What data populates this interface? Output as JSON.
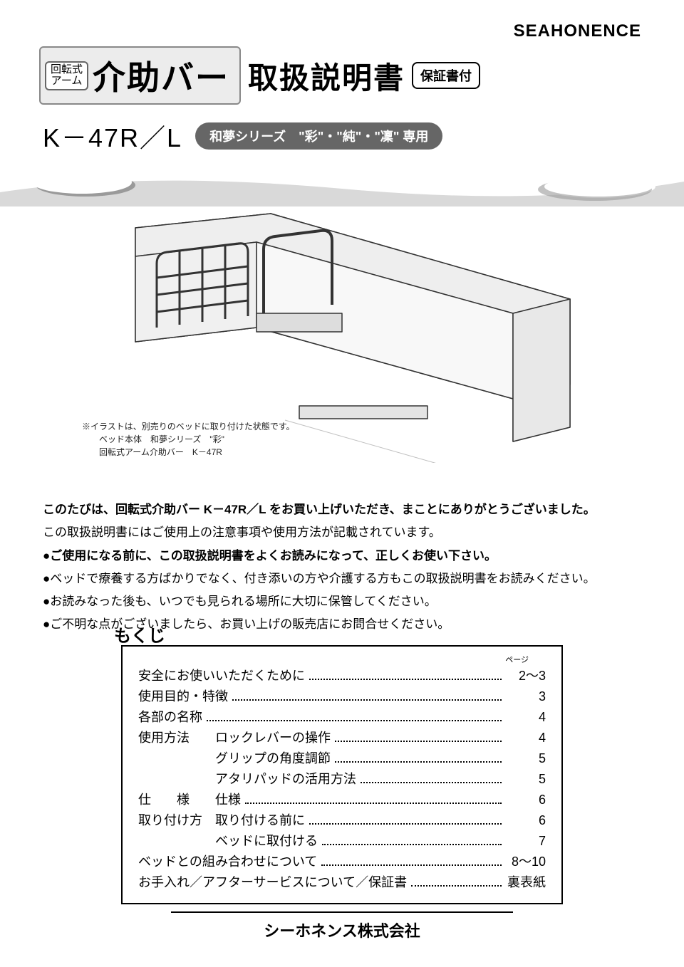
{
  "brand": "SEAHONENCE",
  "product": {
    "prefix_line1": "回転式",
    "prefix_line2": "アーム",
    "name": "介助バー"
  },
  "doc_title": "取扱説明書",
  "warranty_badge": "保証書付",
  "model": "K－47R／L",
  "series_pill": "和夢シリーズ　\"彩\"・\"純\"・\"凜\" 専用",
  "colors": {
    "wave_bg": "#d9d9d9",
    "wave_dark": "#9a9a9a",
    "wave_white": "#ffffff",
    "line_gray": "#888888",
    "pill_bg": "#666666"
  },
  "illustration_caption": {
    "l1": "※イラストは、別売りのベッドに取り付けた状態です。",
    "l2": "ベッド本体　和夢シリーズ　\"彩\"",
    "l3": "回転式アーム介助バー　K－47R"
  },
  "intro": {
    "thanks": "このたびは、回転式介助バー K－47R／L をお買い上げいただき、まことにありがとうございました。",
    "desc": "この取扱説明書にはご使用上の注意事項や使用方法が記載されています。",
    "b1": "●ご使用になる前に、この取扱説明書をよくお読みになって、正しくお使い下さい。",
    "b2": "●ベッドで療養する方ばかりでなく、付き添いの方や介護する方もこの取扱説明書をお読みください。",
    "b3": "●お読みなった後も、いつでも見られる場所に大切に保管してください。",
    "b4": "●ご不明な点がございましたら、お買い上げの販売店にお問合せください。"
  },
  "toc": {
    "title": "もくじ",
    "page_header": "ページ",
    "rows": [
      {
        "label": "安全にお使いいただくために",
        "sub": "",
        "page": "2～3",
        "indent": false
      },
      {
        "label": "使用目的・特徴",
        "sub": "",
        "page": "3",
        "indent": false
      },
      {
        "label": "各部の名称",
        "sub": "",
        "page": "4",
        "indent": false
      },
      {
        "label": "使用方法",
        "sub": "ロックレバーの操作",
        "page": "4",
        "indent": false,
        "label_spaced": false,
        "label_pad": true
      },
      {
        "label": "",
        "sub": "グリップの角度調節",
        "page": "5",
        "indent": true
      },
      {
        "label": "",
        "sub": "アタリパッドの活用方法",
        "page": "5",
        "indent": true
      },
      {
        "label": "仕　　様",
        "sub": "仕様",
        "page": "6",
        "indent": false,
        "label_pad": true
      },
      {
        "label": "取り付け方",
        "sub": "取り付ける前に",
        "page": "6",
        "indent": false,
        "label_pad": true
      },
      {
        "label": "",
        "sub": "ベッドに取付ける",
        "page": "7",
        "indent": true
      },
      {
        "label": "ベッドとの組み合わせについて",
        "sub": "",
        "page": "8～10",
        "indent": false
      },
      {
        "label": "お手入れ／アフターサービスについて／保証書",
        "sub": "",
        "page": "裏表紙",
        "indent": false
      }
    ]
  },
  "company": "シーホネンス株式会社"
}
